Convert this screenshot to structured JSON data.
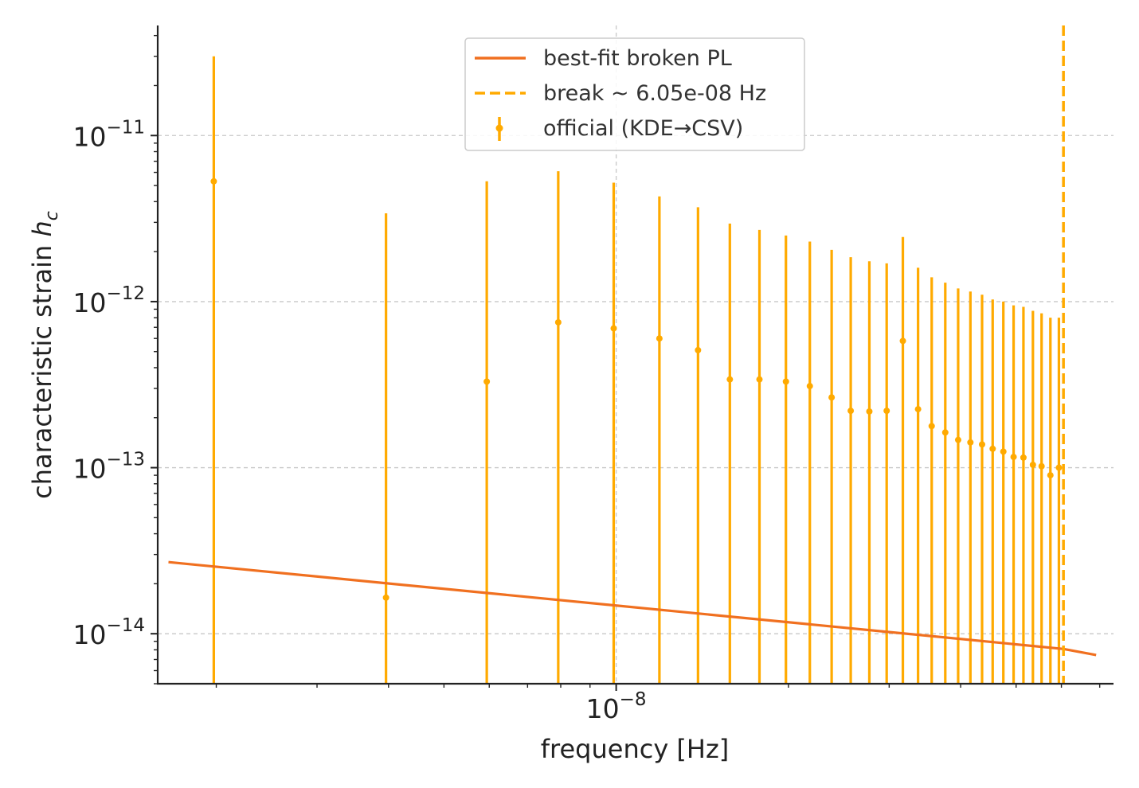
{
  "chart_data": {
    "type": "scatter",
    "xlabel": "frequency [Hz]",
    "ylabel": "characteristic strain h_c",
    "ylabel_parts": {
      "base": "characteristic strain ",
      "symbol": "h",
      "subscript": "c"
    },
    "x_scale": "log",
    "y_scale": "log",
    "xlim": [
      1.58e-09,
      7.4e-08
    ],
    "ylim": [
      5e-15,
      4.6e-11
    ],
    "x_ticks": [
      {
        "value": 1e-08,
        "base": "10",
        "exp": "−8"
      }
    ],
    "y_ticks": [
      {
        "value": 1e-11,
        "base": "10",
        "exp": "−11"
      },
      {
        "value": 1e-12,
        "base": "10",
        "exp": "−12"
      },
      {
        "value": 1e-13,
        "base": "10",
        "exp": "−13"
      },
      {
        "value": 1e-14,
        "base": "10",
        "exp": "−14"
      }
    ],
    "grid": true,
    "legend_position": "top-center",
    "legend": [
      {
        "label": "best-fit broken PL",
        "style": "line"
      },
      {
        "label": "break ~ 6.05e-08 Hz",
        "style": "dashed"
      },
      {
        "label": "official (KDE→CSV)",
        "style": "errorbar"
      }
    ],
    "series": [
      {
        "name": "official (KDE→CSV)",
        "kind": "errorbar",
        "color": "#FFAA00",
        "points": [
          {
            "x": 1.98e-09,
            "y": 5.3e-12,
            "lo": 5e-15,
            "hi": 3e-11
          },
          {
            "x": 3.96e-09,
            "y": 1.65e-14,
            "lo": 5e-15,
            "hi": 3.4e-12
          },
          {
            "x": 5.94e-09,
            "y": 3.3e-13,
            "lo": 5e-15,
            "hi": 5.3e-12
          },
          {
            "x": 7.92e-09,
            "y": 7.5e-13,
            "lo": 5e-15,
            "hi": 6.1e-12
          },
          {
            "x": 9.9e-09,
            "y": 6.9e-13,
            "lo": 5e-15,
            "hi": 5.2e-12
          },
          {
            "x": 1.19e-08,
            "y": 6e-13,
            "lo": 5e-15,
            "hi": 4.3e-12
          },
          {
            "x": 1.39e-08,
            "y": 5.1e-13,
            "lo": 5e-15,
            "hi": 3.7e-12
          },
          {
            "x": 1.58e-08,
            "y": 3.4e-13,
            "lo": 5e-15,
            "hi": 2.95e-12
          },
          {
            "x": 1.78e-08,
            "y": 3.4e-13,
            "lo": 5e-15,
            "hi": 2.7e-12
          },
          {
            "x": 1.98e-08,
            "y": 3.3e-13,
            "lo": 5e-15,
            "hi": 2.5e-12
          },
          {
            "x": 2.18e-08,
            "y": 3.1e-13,
            "lo": 5e-15,
            "hi": 2.3e-12
          },
          {
            "x": 2.38e-08,
            "y": 2.65e-13,
            "lo": 5e-15,
            "hi": 2.05e-12
          },
          {
            "x": 2.57e-08,
            "y": 2.2e-13,
            "lo": 5e-15,
            "hi": 1.85e-12
          },
          {
            "x": 2.77e-08,
            "y": 2.18e-13,
            "lo": 5e-15,
            "hi": 1.75e-12
          },
          {
            "x": 2.97e-08,
            "y": 2.2e-13,
            "lo": 5e-15,
            "hi": 1.7e-12
          },
          {
            "x": 3.17e-08,
            "y": 5.8e-13,
            "lo": 5e-15,
            "hi": 2.45e-12
          },
          {
            "x": 3.37e-08,
            "y": 2.25e-13,
            "lo": 5e-15,
            "hi": 1.6e-12
          },
          {
            "x": 3.56e-08,
            "y": 1.78e-13,
            "lo": 5e-15,
            "hi": 1.4e-12
          },
          {
            "x": 3.76e-08,
            "y": 1.63e-13,
            "lo": 5e-15,
            "hi": 1.3e-12
          },
          {
            "x": 3.96e-08,
            "y": 1.47e-13,
            "lo": 5e-15,
            "hi": 1.2e-12
          },
          {
            "x": 4.16e-08,
            "y": 1.42e-13,
            "lo": 5e-15,
            "hi": 1.15e-12
          },
          {
            "x": 4.36e-08,
            "y": 1.38e-13,
            "lo": 5e-15,
            "hi": 1.1e-12
          },
          {
            "x": 4.55e-08,
            "y": 1.3e-13,
            "lo": 5e-15,
            "hi": 1.03e-12
          },
          {
            "x": 4.75e-08,
            "y": 1.25e-13,
            "lo": 5e-15,
            "hi": 1e-12
          },
          {
            "x": 4.95e-08,
            "y": 1.16e-13,
            "lo": 5e-15,
            "hi": 9.5e-13
          },
          {
            "x": 5.15e-08,
            "y": 1.15e-13,
            "lo": 5e-15,
            "hi": 9.3e-13
          },
          {
            "x": 5.35e-08,
            "y": 1.04e-13,
            "lo": 5e-15,
            "hi": 8.8e-13
          },
          {
            "x": 5.54e-08,
            "y": 1.02e-13,
            "lo": 5e-15,
            "hi": 8.5e-13
          },
          {
            "x": 5.74e-08,
            "y": 9e-14,
            "lo": 5e-15,
            "hi": 8e-13
          },
          {
            "x": 5.94e-08,
            "y": 1e-13,
            "lo": 5e-15,
            "hi": 8e-13
          }
        ]
      },
      {
        "name": "best-fit broken PL",
        "kind": "line",
        "color": "#F07020",
        "points": [
          {
            "x": 1.65e-09,
            "y": 2.7e-14
          },
          {
            "x": 6.05e-08,
            "y": 8.1e-15
          },
          {
            "x": 6.9e-08,
            "y": 7.45e-15
          }
        ]
      },
      {
        "name": "break ~ 6.05e-08 Hz",
        "kind": "vline",
        "color": "#FFAA00",
        "x": 6.05e-08
      }
    ]
  }
}
